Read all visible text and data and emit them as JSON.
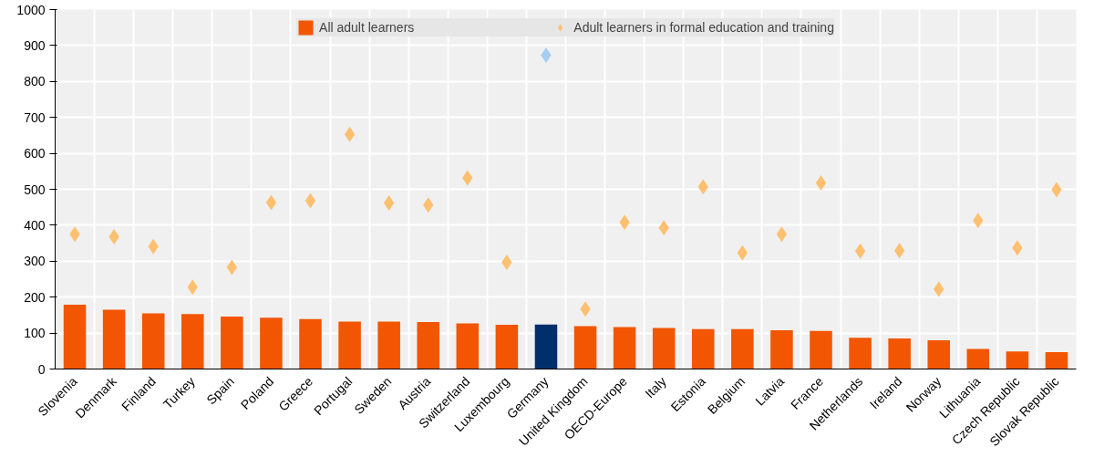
{
  "chart_data": {
    "type": "bar",
    "categories": [
      "Slovenia",
      "Denmark",
      "Finland",
      "Turkey",
      "Spain",
      "Poland",
      "Greece",
      "Portugal",
      "Sweden",
      "Austria",
      "Switzerland",
      "Luxembourg",
      "Germany",
      "United Kingdom",
      "OECD-Europe",
      "Italy",
      "Estonia",
      "Belgium",
      "Latvia",
      "France",
      "Netherlands",
      "Ireland",
      "Norway",
      "Lithuania",
      "Czech Republic",
      "Slovak Republic"
    ],
    "series": [
      {
        "name": "All adult learners",
        "colors": [
          "#f25602",
          "#f25602",
          "#f25602",
          "#f25602",
          "#f25602",
          "#f25602",
          "#f25602",
          "#f25602",
          "#f25602",
          "#f25602",
          "#f25602",
          "#f25602",
          "#002f6c",
          "#f25602",
          "#f25602",
          "#f25602",
          "#f25602",
          "#f25602",
          "#f25602",
          "#f25602",
          "#f25602",
          "#f25602",
          "#f25602",
          "#f25602",
          "#f25602",
          "#f25602"
        ],
        "values": [
          179,
          165,
          155,
          153,
          146,
          143,
          139,
          132,
          132,
          131,
          127,
          123,
          124,
          119,
          117,
          114,
          111,
          111,
          108,
          106,
          87,
          85,
          80,
          56,
          49,
          47
        ]
      },
      {
        "name": "Adult learners in formal education and training",
        "type": "scatter",
        "marker": "diamond",
        "colors": [
          "#fdc070",
          "#fdc070",
          "#fdc070",
          "#fdc070",
          "#fdc070",
          "#fdc070",
          "#fdc070",
          "#fdc070",
          "#fdc070",
          "#fdc070",
          "#fdc070",
          "#fdc070",
          "#a7cdf0",
          "#fdc070",
          "#fdc070",
          "#fdc070",
          "#fdc070",
          "#fdc070",
          "#fdc070",
          "#fdc070",
          "#fdc070",
          "#fdc070",
          "#fdc070",
          "#fdc070",
          "#fdc070",
          "#fdc070"
        ],
        "values": [
          375,
          368,
          341,
          228,
          283,
          463,
          468,
          653,
          462,
          456,
          532,
          297,
          873,
          167,
          408,
          393,
          507,
          323,
          375,
          518,
          328,
          329,
          222,
          413,
          337,
          499
        ]
      }
    ],
    "ylim": [
      0,
      1000
    ],
    "yticks": [
      0,
      100,
      200,
      300,
      400,
      500,
      600,
      700,
      800,
      900,
      1000
    ],
    "grid": true,
    "legend": "top"
  }
}
